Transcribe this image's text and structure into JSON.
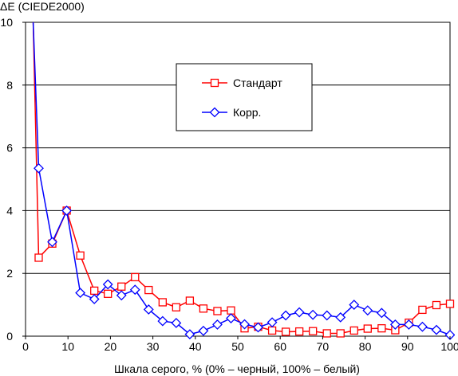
{
  "chart_data": {
    "type": "line",
    "title": "",
    "ylabel": "ΔE (CIEDE2000)",
    "xlabel": "Шкала серого, % (0% – черный, 100% – белый)",
    "xlim": [
      0,
      100
    ],
    "ylim": [
      0,
      10
    ],
    "xticks": [
      0,
      10,
      20,
      30,
      40,
      50,
      60,
      70,
      80,
      90,
      100
    ],
    "yticks": [
      0,
      2,
      4,
      6,
      8,
      10
    ],
    "grid": "horizontal",
    "legend_position": "upper-center-right",
    "series": [
      {
        "name": "Стандарт",
        "color": "#ff0000",
        "marker": "square",
        "x": [
          1.8,
          3.1,
          6.3,
          9.7,
          12.9,
          16.2,
          19.4,
          22.6,
          25.8,
          29.0,
          32.3,
          35.5,
          38.7,
          41.9,
          45.2,
          48.4,
          51.6,
          54.8,
          58.1,
          61.3,
          64.5,
          67.7,
          71.0,
          74.2,
          77.4,
          80.6,
          83.9,
          87.1,
          90.3,
          93.5,
          96.8,
          100.0
        ],
        "y": [
          10.0,
          2.5,
          2.95,
          4.0,
          2.57,
          1.45,
          1.35,
          1.58,
          1.88,
          1.47,
          1.08,
          0.92,
          1.13,
          0.88,
          0.8,
          0.82,
          0.25,
          0.3,
          0.18,
          0.14,
          0.15,
          0.16,
          0.09,
          0.09,
          0.18,
          0.24,
          0.25,
          0.19,
          0.43,
          0.84,
          0.99,
          1.03
        ]
      },
      {
        "name": "Корр.",
        "color": "#0000ff",
        "marker": "diamond",
        "x": [
          1.8,
          3.1,
          6.3,
          9.7,
          12.9,
          16.2,
          19.4,
          22.6,
          25.8,
          29.0,
          32.3,
          35.5,
          38.7,
          41.9,
          45.2,
          48.4,
          51.6,
          54.8,
          58.1,
          61.3,
          64.5,
          67.7,
          71.0,
          74.2,
          77.4,
          80.6,
          83.9,
          87.1,
          90.3,
          93.5,
          96.8,
          100.0
        ],
        "y": [
          10.0,
          5.35,
          3.0,
          4.0,
          1.38,
          1.18,
          1.65,
          1.3,
          1.48,
          0.85,
          0.48,
          0.42,
          0.06,
          0.17,
          0.37,
          0.57,
          0.38,
          0.28,
          0.44,
          0.66,
          0.76,
          0.68,
          0.66,
          0.6,
          1.0,
          0.82,
          0.74,
          0.37,
          0.37,
          0.3,
          0.2,
          0.04
        ]
      }
    ]
  }
}
